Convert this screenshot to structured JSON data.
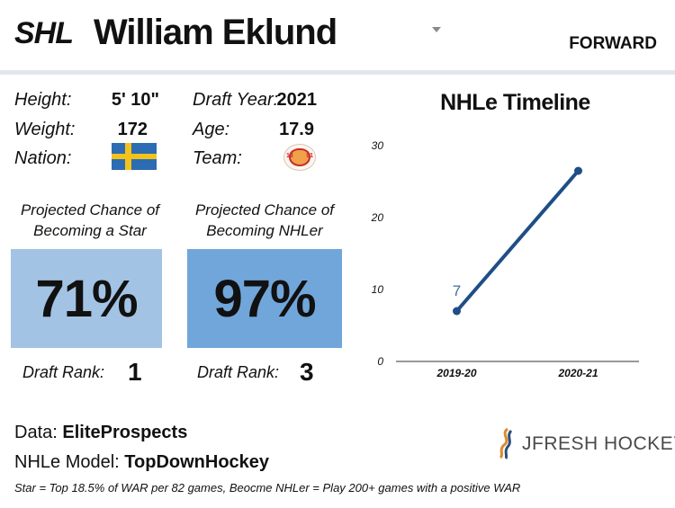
{
  "header": {
    "league_logo": "SHL",
    "player_name": "William Eklund",
    "position": "FORWARD"
  },
  "bio": {
    "height_label": "Height:",
    "height_value": "5' 10\"",
    "weight_label": "Weight:",
    "weight_value": "172",
    "nation_label": "Nation:",
    "nation_flag": "sweden-flag",
    "draft_year_label": "Draft Year:",
    "draft_year_value": "2021",
    "age_label": "Age:",
    "age_value": "17.9",
    "team_label": "Team:",
    "team_logo": "djurgarden-crest",
    "team_logo_text_left": "18",
    "team_logo_text_right": "91"
  },
  "projections": [
    {
      "title_line1": "Projected Chance of",
      "title_line2": "Becoming a Star",
      "value": "71%",
      "percent": 71,
      "box_color": "#a3c3e4",
      "rank_label": "Draft Rank:",
      "rank_value": "1"
    },
    {
      "title_line1": "Projected Chance of",
      "title_line2": "Becoming NHLer",
      "value": "97%",
      "percent": 97,
      "box_color": "#71a6da",
      "rank_label": "Draft Rank:",
      "rank_value": "3"
    }
  ],
  "chart_data": {
    "type": "line",
    "title": "NHLe Timeline",
    "categories": [
      "2019-20",
      "2020-21"
    ],
    "series": [
      {
        "values": [
          7,
          26.5
        ],
        "color": "#1f4e86"
      }
    ],
    "point_label": "7",
    "ylim": [
      0,
      30
    ],
    "yticks": [
      "0",
      "10",
      "20",
      "30"
    ],
    "grid": false,
    "xlabel": "",
    "ylabel": ""
  },
  "footer": {
    "data_label": "Data:",
    "data_value": "EliteProspects",
    "model_label": "NHLe Model:",
    "model_value": "TopDownHockey",
    "footnote": "Star = Top 18.5% of WAR per 82 games, Beocme NHLer = Play 200+ games with a positive WAR",
    "brand": "JFRESH HOCKEY",
    "brand_icon": "jfresh-logo-icon"
  }
}
